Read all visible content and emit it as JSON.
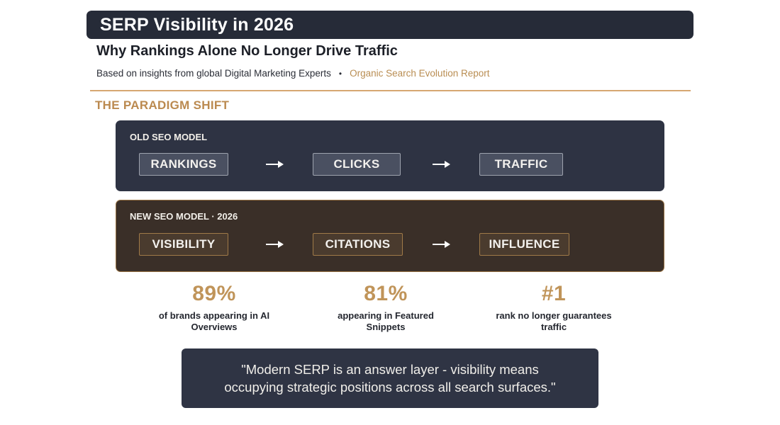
{
  "header": {
    "title": "SERP Visibility in 2026",
    "subtitle": "Why Rankings Alone No Longer Drive Traffic",
    "source": "Based on insights from global Digital Marketing Experts",
    "separator": "•",
    "report": "Organic Search Evolution Report"
  },
  "section": {
    "heading": "THE PARADIGM SHIFT"
  },
  "old_model": {
    "label": "OLD SEO MODEL",
    "steps": [
      "RANKINGS",
      "CLICKS",
      "TRAFFIC"
    ]
  },
  "new_model": {
    "label": "NEW SEO MODEL · 2026",
    "steps": [
      "VISIBILITY",
      "CITATIONS",
      "INFLUENCE"
    ]
  },
  "stats": [
    {
      "value": "89%",
      "desc_line1": "of brands appearing in AI",
      "desc_line2": "Overviews"
    },
    {
      "value": "81%",
      "desc_line1": "appearing in Featured",
      "desc_line2": "Snippets"
    },
    {
      "value": "#1",
      "desc_line1": "rank no longer guarantees",
      "desc_line2": "traffic"
    }
  ],
  "quote": {
    "line1": "\"Modern SERP is an answer layer - visibility means",
    "line2": "occupying strategic positions across all search surfaces.\""
  },
  "colors": {
    "accent_gold": "#c09459",
    "dark_navy": "#2e3343",
    "dark_brown": "#3a2f28"
  },
  "icons": {
    "flow_arrow": "right-arrow-icon"
  }
}
